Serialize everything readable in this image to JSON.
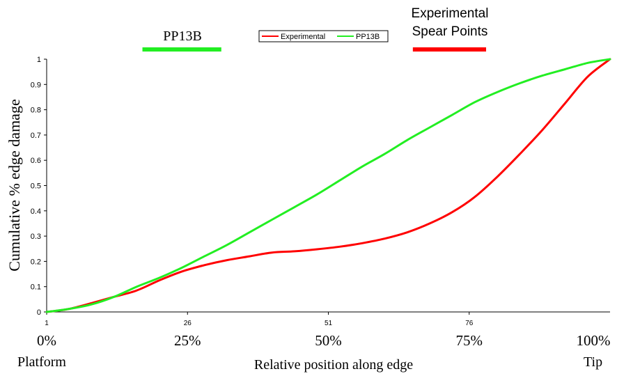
{
  "chart_data": {
    "type": "line",
    "ylabel": "Cumulative % edge damage",
    "xlabel": "Relative position along edge",
    "xlim": [
      1,
      101
    ],
    "ylim": [
      0,
      1
    ],
    "y_ticks": [
      "0",
      "0.1",
      "0.2",
      "0.3",
      "0.4",
      "0.5",
      "0.6",
      "0.7",
      "0.8",
      "0.9",
      "1"
    ],
    "x_ticks": [
      {
        "value": 1,
        "label": "1"
      },
      {
        "value": 26,
        "label": "26"
      },
      {
        "value": 51,
        "label": "51"
      },
      {
        "value": 76,
        "label": "76"
      }
    ],
    "percent_labels": [
      {
        "value": 1,
        "label": "0%"
      },
      {
        "value": 26,
        "label": "25%"
      },
      {
        "value": 51,
        "label": "50%"
      },
      {
        "value": 76,
        "label": "75%"
      },
      {
        "value": 101,
        "label": "100%"
      }
    ],
    "end_labels": {
      "left": "Platform",
      "right": "Tip"
    },
    "grid": false,
    "legend_position": "top-center",
    "series": [
      {
        "name": "Experimental",
        "color": "#ff0000",
        "x": [
          1,
          5,
          9,
          13,
          17,
          21,
          25,
          29,
          33,
          37,
          41,
          45,
          49,
          53,
          57,
          61,
          65,
          69,
          73,
          77,
          81,
          85,
          89,
          93,
          97,
          101
        ],
        "y": [
          0,
          0.012,
          0.035,
          0.06,
          0.085,
          0.125,
          0.16,
          0.185,
          0.205,
          0.22,
          0.235,
          0.24,
          0.248,
          0.258,
          0.272,
          0.29,
          0.315,
          0.35,
          0.395,
          0.455,
          0.535,
          0.625,
          0.72,
          0.825,
          0.93,
          1.0
        ]
      },
      {
        "name": "PP13B",
        "color": "#22ee22",
        "x": [
          1,
          5,
          9,
          13,
          17,
          21,
          25,
          29,
          33,
          37,
          41,
          45,
          49,
          53,
          57,
          61,
          65,
          69,
          73,
          77,
          81,
          85,
          89,
          93,
          97,
          101
        ],
        "y": [
          0,
          0.012,
          0.03,
          0.06,
          0.1,
          0.135,
          0.175,
          0.22,
          0.265,
          0.315,
          0.365,
          0.415,
          0.465,
          0.52,
          0.575,
          0.625,
          0.68,
          0.73,
          0.78,
          0.83,
          0.87,
          0.905,
          0.935,
          0.96,
          0.985,
          1.0
        ]
      }
    ],
    "annotations": [
      {
        "text": "PP13B",
        "color": "#22ee22",
        "x_start": 18,
        "x_end": 32
      },
      {
        "text": "Experimental",
        "text2": "Spear Points",
        "color": "#ff0000",
        "x_start": 66,
        "x_end": 79
      }
    ]
  }
}
